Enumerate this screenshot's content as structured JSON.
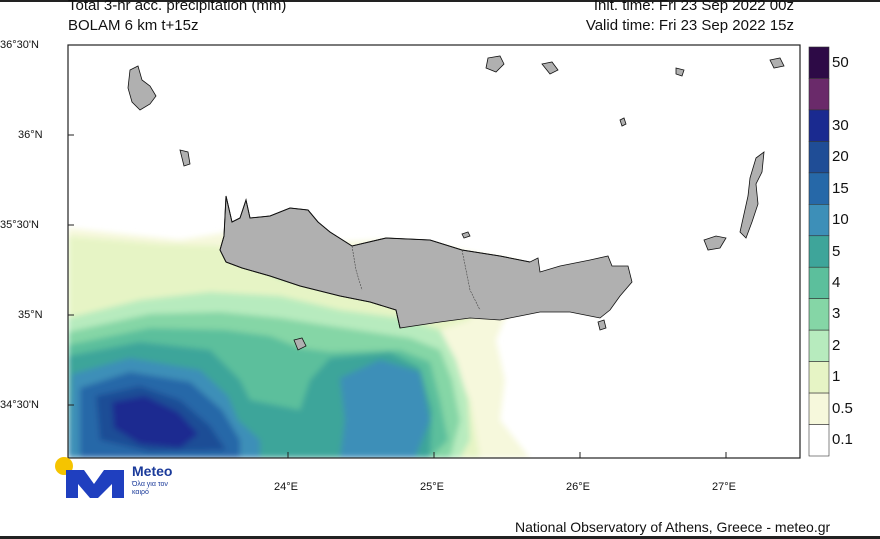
{
  "header": {
    "title_line1": "Total 3-hr acc. precipitation (mm)",
    "title_line2": "BOLAM 6 km t+15z",
    "init_time": "Init. time: Fri 23 Sep 2022 00z",
    "valid_time": "Valid time: Fri 23 Sep 2022 15z"
  },
  "map": {
    "lat_labels": [
      "36°30'N",
      "36°N",
      "35°30'N",
      "35°N",
      "34°30'N"
    ],
    "lon_labels": [
      "24°E",
      "25°E",
      "26°E",
      "27°E"
    ],
    "land_color": "#b0b0b0",
    "sea_color": "#ffffff"
  },
  "legend": {
    "levels": [
      {
        "label": "50",
        "color": "#2d0a46"
      },
      {
        "label": "",
        "color": "#6a2a6a"
      },
      {
        "label": "30",
        "color": "#1a2a90"
      },
      {
        "label": "20",
        "color": "#1f4d96"
      },
      {
        "label": "15",
        "color": "#2668a8"
      },
      {
        "label": "10",
        "color": "#3d8fb8"
      },
      {
        "label": "5",
        "color": "#3ea59a"
      },
      {
        "label": "4",
        "color": "#5cbf9c"
      },
      {
        "label": "3",
        "color": "#85d6a6"
      },
      {
        "label": "2",
        "color": "#b7ebbe"
      },
      {
        "label": "1",
        "color": "#e6f4c5"
      },
      {
        "label": "0.5",
        "color": "#f6f8dc"
      },
      {
        "label": "0.1",
        "color": "#ffffff"
      }
    ]
  },
  "logo": {
    "brand": "Meteo",
    "tagline": "Όλα για τον καιρό"
  },
  "footer": {
    "credit": "National Observatory of Athens, Greece - meteo.gr"
  }
}
